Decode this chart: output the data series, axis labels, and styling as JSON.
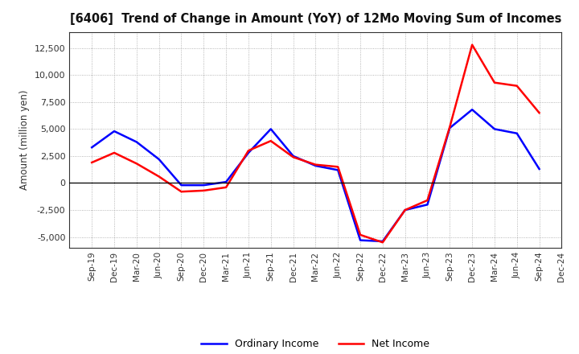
{
  "title": "[6406]  Trend of Change in Amount (YoY) of 12Mo Moving Sum of Incomes",
  "ylabel": "Amount (million yen)",
  "x_labels": [
    "Sep-19",
    "Dec-19",
    "Mar-20",
    "Jun-20",
    "Sep-20",
    "Dec-20",
    "Mar-21",
    "Jun-21",
    "Sep-21",
    "Dec-21",
    "Mar-22",
    "Jun-22",
    "Sep-22",
    "Dec-22",
    "Mar-23",
    "Jun-23",
    "Sep-23",
    "Dec-23",
    "Mar-24",
    "Jun-24",
    "Sep-24",
    "Dec-24"
  ],
  "ordinary_income": [
    3300,
    4800,
    3800,
    2200,
    -200,
    -200,
    100,
    2800,
    5000,
    2500,
    1600,
    1200,
    -5300,
    -5400,
    -2500,
    -2000,
    5100,
    6800,
    5000,
    4600,
    1300,
    null
  ],
  "net_income": [
    1900,
    2800,
    1800,
    600,
    -800,
    -700,
    -400,
    3000,
    3900,
    2400,
    1700,
    1500,
    -4800,
    -5500,
    -2500,
    -1600,
    5200,
    12800,
    9300,
    9000,
    6500,
    null
  ],
  "ordinary_color": "#0000ff",
  "net_color": "#ff0000",
  "ylim": [
    -6000,
    14000
  ],
  "yticks": [
    -5000,
    -2500,
    0,
    2500,
    5000,
    7500,
    10000,
    12500
  ],
  "background_color": "#ffffff",
  "grid_color": "#999999",
  "legend_labels": [
    "Ordinary Income",
    "Net Income"
  ]
}
